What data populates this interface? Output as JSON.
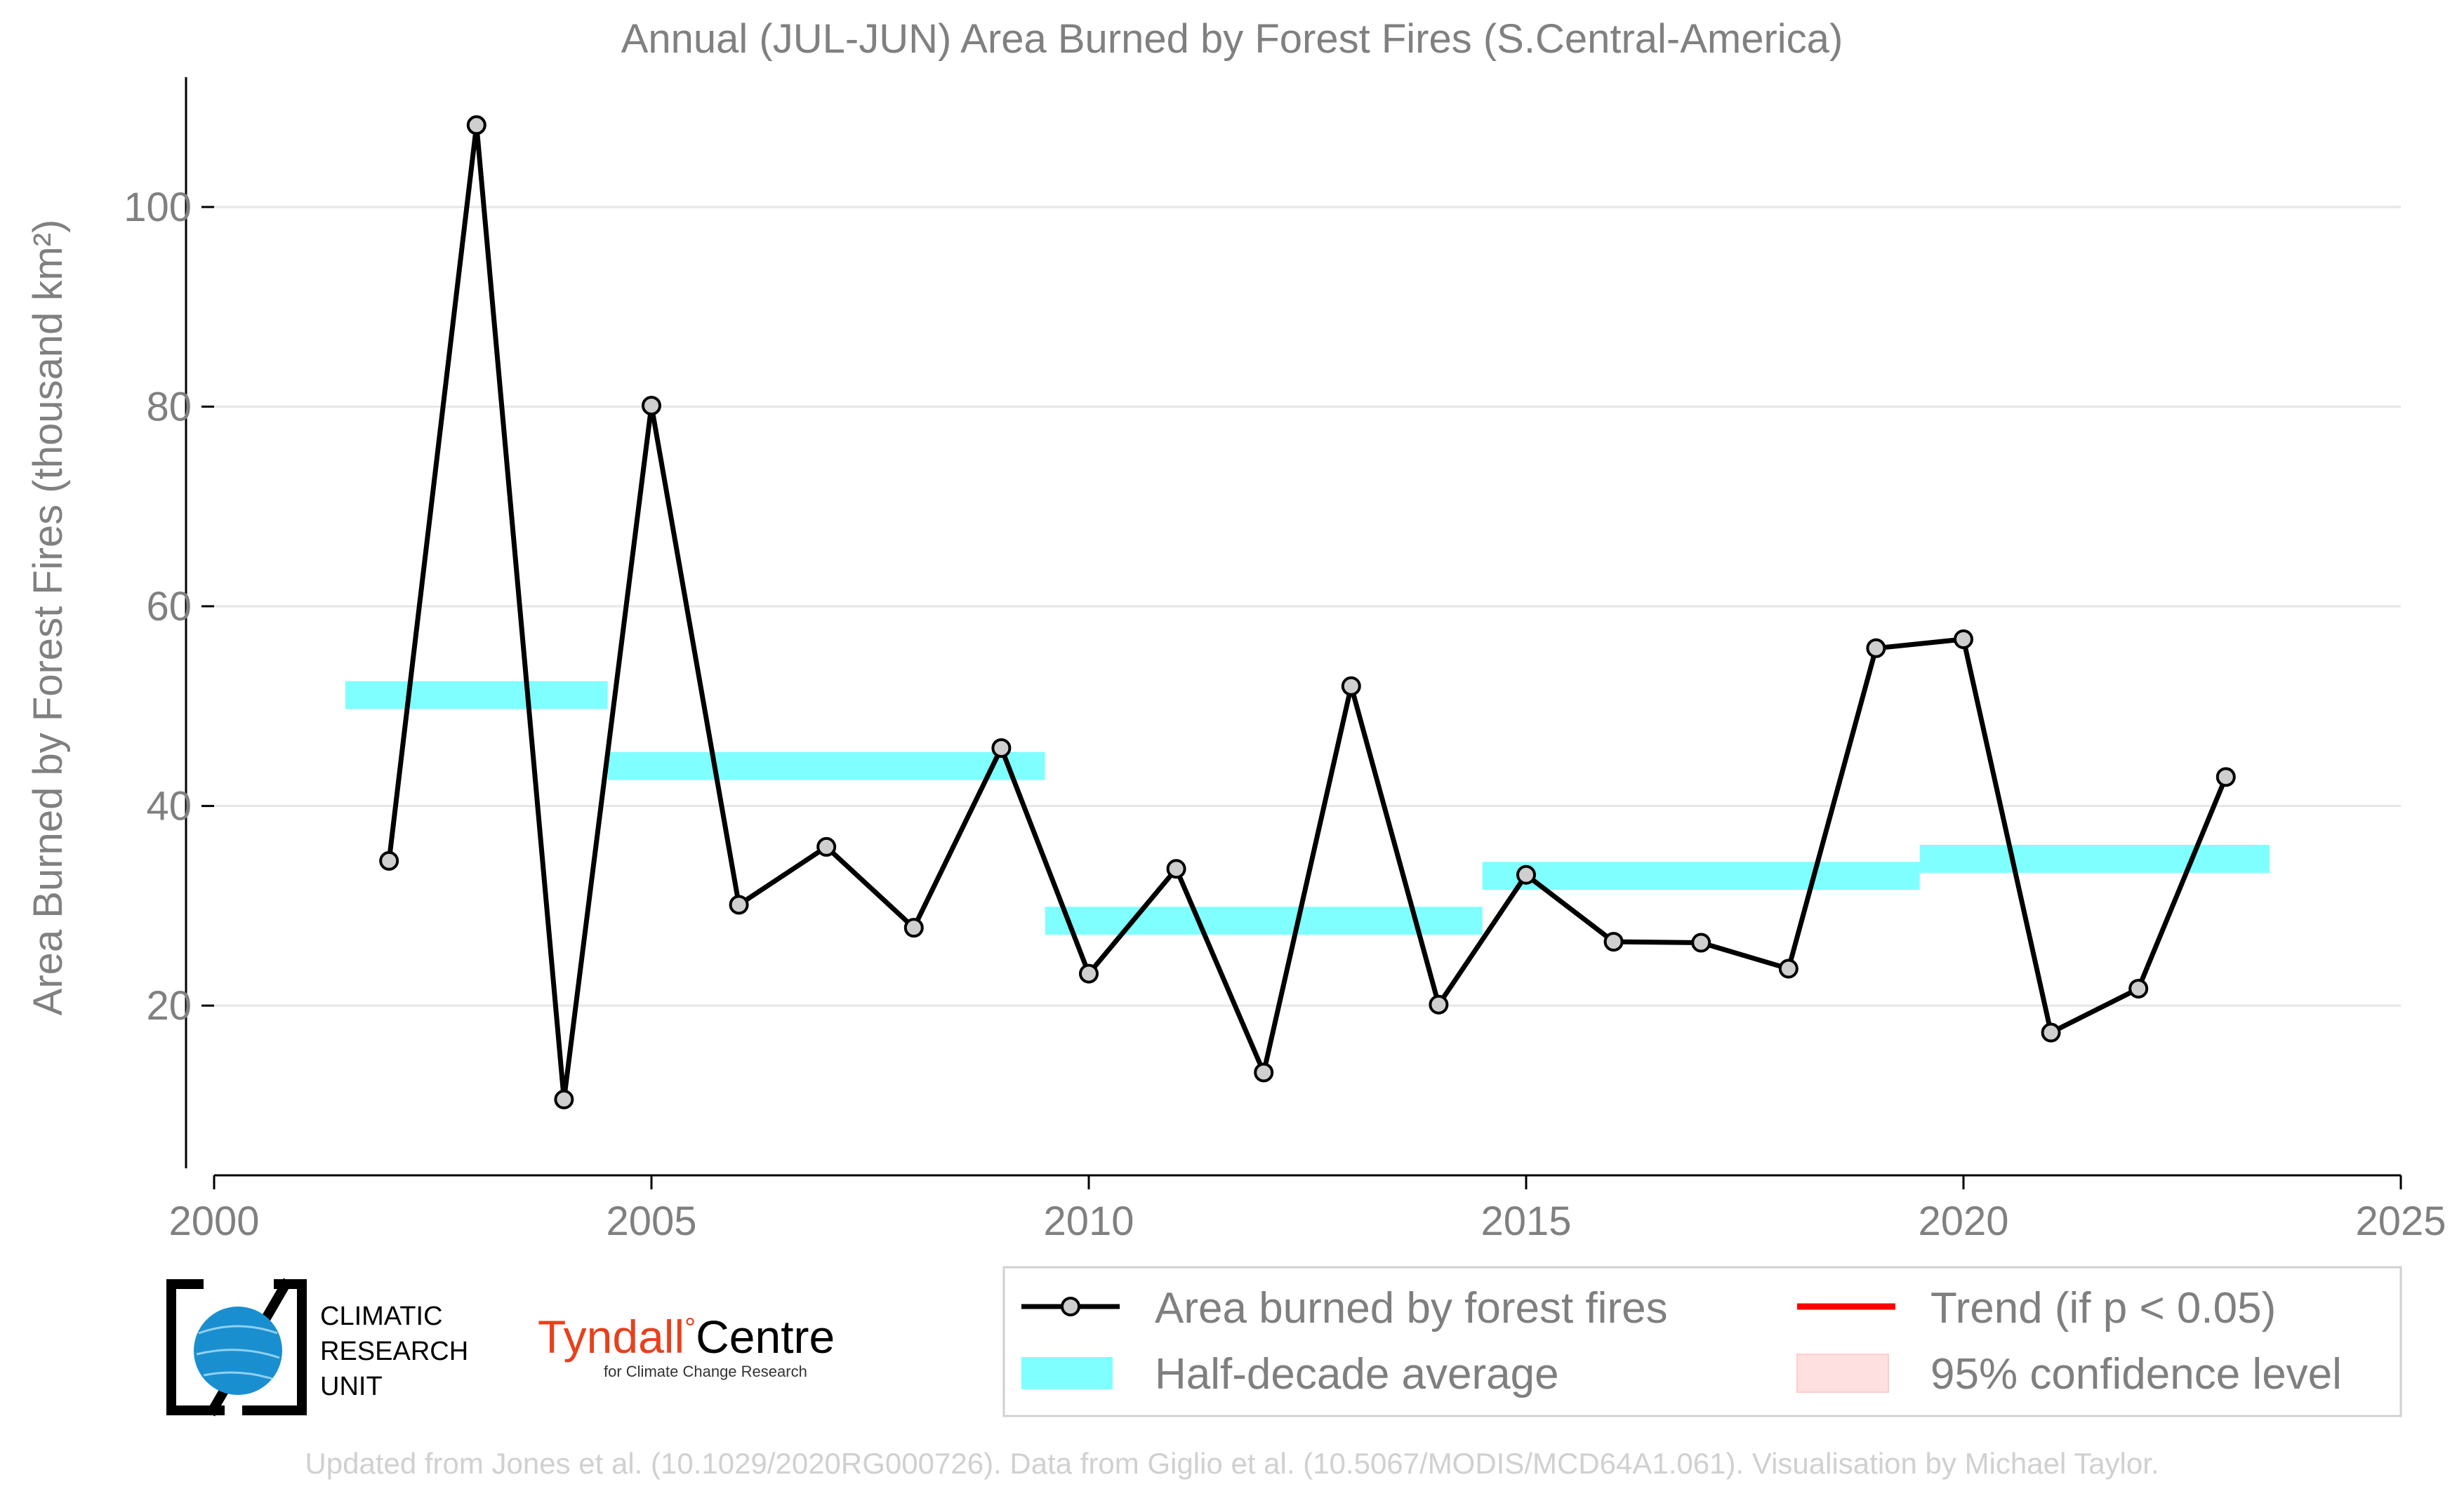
{
  "chart_data": {
    "type": "line",
    "title": "Annual (JUL-JUN) Area Burned by Forest Fires (S.Central-America)",
    "ylabel": "Area Burned by Forest Fires (thousand km²)",
    "xlabel": "",
    "xlim": [
      2000,
      2025
    ],
    "ylim": [
      3,
      113
    ],
    "xticks": [
      2000,
      2005,
      2010,
      2015,
      2020,
      2025
    ],
    "yticks": [
      20,
      40,
      60,
      80,
      100
    ],
    "grid": "horizontal",
    "legend_position": "bottom",
    "series": [
      {
        "name": "Area burned by forest fires",
        "color": "#000000",
        "x": [
          2002,
          2003,
          2004,
          2005,
          2006,
          2007,
          2008,
          2009,
          2010,
          2011,
          2012,
          2013,
          2014,
          2015,
          2016,
          2017,
          2018,
          2019,
          2020,
          2021,
          2022,
          2023
        ],
        "y": [
          34.5,
          108.2,
          10.6,
          80.1,
          30.1,
          35.9,
          27.8,
          45.8,
          23.2,
          33.7,
          13.3,
          52.0,
          20.1,
          33.1,
          26.4,
          26.3,
          23.7,
          55.8,
          56.7,
          17.3,
          21.7,
          42.9
        ]
      }
    ],
    "half_decade_average": {
      "name": "Half-decade average",
      "color": "#7fffff",
      "segments": [
        {
          "x0": 2001.5,
          "x1": 2004.5,
          "y": 51.1
        },
        {
          "x0": 2004.5,
          "x1": 2009.5,
          "y": 44.0
        },
        {
          "x0": 2009.5,
          "x1": 2014.5,
          "y": 28.5
        },
        {
          "x0": 2014.5,
          "x1": 2019.5,
          "y": 33.0
        },
        {
          "x0": 2019.5,
          "x1": 2023.5,
          "y": 34.7
        }
      ]
    },
    "legend": [
      {
        "label": "Area burned by forest fires",
        "kind": "line-marker",
        "color": "#000000"
      },
      {
        "label": "Trend (if p < 0.05)",
        "kind": "line",
        "color": "#ff0000"
      },
      {
        "label": "Half-decade average",
        "kind": "band",
        "color": "#7fffff"
      },
      {
        "label": "95% confidence level",
        "kind": "patch",
        "color": "#ffe0e0"
      }
    ]
  },
  "logos": {
    "cru": [
      "CLIMATIC",
      "RESEARCH",
      "UNIT"
    ],
    "tyndall_name": "Tyndall",
    "tyndall_degree": "°",
    "tyndall_centre": "Centre",
    "tyndall_sub": "for Climate Change Research"
  },
  "credit": "Updated from Jones et al. (10.1029/2020RG000726). Data from Giglio et al. (10.5067/MODIS/MCD64A1.061). Visualisation by Michael Taylor."
}
